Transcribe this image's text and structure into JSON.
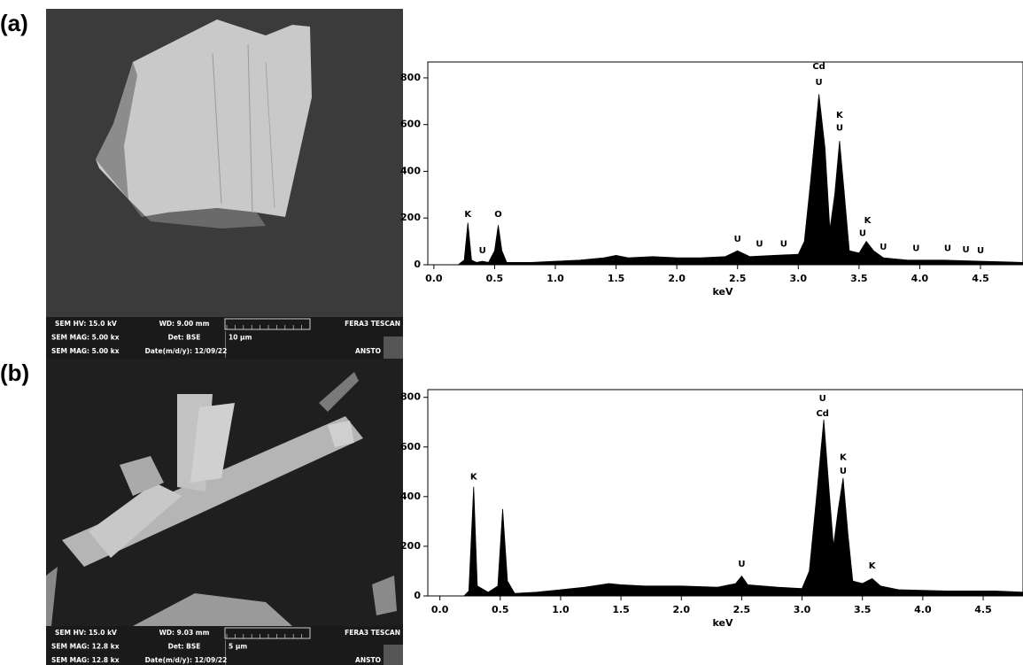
{
  "panel_labels": [
    "(a)",
    "(b)"
  ],
  "sem_info": [
    [
      "SEM HV: 15.0 kV",
      "WD: 9.00 mm",
      "FERA3 TESCAN",
      "SEM MAG: 5.00 kx",
      "Det: BSE",
      "10 μm",
      "SEM MAG: 5.00 kx",
      "Date(m/d/y): 12/09/22",
      "ANSTO"
    ],
    [
      "SEM HV: 15.0 kV",
      "WD: 9.03 mm",
      "FERA3 TESCAN",
      "SEM MAG: 12.8 kx",
      "Det: BSE",
      "5 μm",
      "SEM MAG: 12.8 kx",
      "Date(m/d/y): 12/09/22",
      "ANSTO"
    ]
  ],
  "chart_data": [
    {
      "type": "area",
      "xlabel": "keV",
      "color": "#000000",
      "xlim": [
        -0.05,
        4.85
      ],
      "ylim": [
        0,
        868
      ],
      "xticks": [
        {
          "value": 0,
          "label": "0.0"
        },
        0.5,
        {
          "value": 1,
          "label": "1.0"
        },
        1.5,
        {
          "value": 2,
          "label": "2.0"
        },
        2.5,
        {
          "value": 3,
          "label": "3.0"
        },
        3.5,
        {
          "value": 4,
          "label": "4.0"
        },
        4.5
      ],
      "yticks": [
        0,
        200,
        400,
        600,
        800
      ],
      "x": [
        0.2,
        0.25,
        0.28,
        0.31,
        0.35,
        0.4,
        0.45,
        0.5,
        0.53,
        0.56,
        0.6,
        0.8,
        1.0,
        1.2,
        1.4,
        1.5,
        1.6,
        1.8,
        2.0,
        2.2,
        2.4,
        2.5,
        2.6,
        2.8,
        3.0,
        3.05,
        3.1,
        3.17,
        3.22,
        3.26,
        3.3,
        3.34,
        3.38,
        3.42,
        3.5,
        3.56,
        3.62,
        3.7,
        3.9,
        4.2,
        4.5,
        4.85
      ],
      "values": [
        0,
        20,
        180,
        20,
        10,
        15,
        10,
        60,
        170,
        60,
        10,
        10,
        15,
        20,
        30,
        40,
        30,
        35,
        30,
        30,
        35,
        60,
        35,
        40,
        45,
        100,
        350,
        730,
        500,
        150,
        300,
        530,
        300,
        60,
        50,
        100,
        60,
        30,
        20,
        20,
        15,
        10
      ],
      "annotations": [
        {
          "text": "K",
          "x": 0.28,
          "y": 217
        },
        {
          "text": "U",
          "x": 0.4,
          "y": 60
        },
        {
          "text": "O",
          "x": 0.53,
          "y": 217
        },
        {
          "text": "U",
          "x": 2.5,
          "y": 110
        },
        {
          "text": "U",
          "x": 2.68,
          "y": 90
        },
        {
          "text": "U",
          "x": 2.88,
          "y": 90
        },
        {
          "text": "Cd",
          "x": 3.17,
          "y": 849
        },
        {
          "text": "U",
          "x": 3.17,
          "y": 780
        },
        {
          "text": "K",
          "x": 3.34,
          "y": 640
        },
        {
          "text": "U",
          "x": 3.34,
          "y": 585
        },
        {
          "text": "K",
          "x": 3.57,
          "y": 190
        },
        {
          "text": "U",
          "x": 3.53,
          "y": 135
        },
        {
          "text": "U",
          "x": 3.7,
          "y": 75
        },
        {
          "text": "U",
          "x": 3.97,
          "y": 70
        },
        {
          "text": "U",
          "x": 4.23,
          "y": 70
        },
        {
          "text": "U",
          "x": 4.38,
          "y": 65
        },
        {
          "text": "U",
          "x": 4.5,
          "y": 60
        }
      ]
    },
    {
      "type": "area",
      "xlabel": "keV",
      "color": "#000000",
      "xlim": [
        -0.1,
        4.83
      ],
      "ylim": [
        0,
        831
      ],
      "xticks": [
        {
          "value": 0,
          "label": "0.0"
        },
        0.5,
        {
          "value": 1,
          "label": "1.0"
        },
        1.5,
        {
          "value": 2,
          "label": "2.0"
        },
        2.5,
        {
          "value": 3,
          "label": "3.0"
        },
        3.5,
        {
          "value": 4,
          "label": "4.0"
        },
        4.5
      ],
      "yticks": [
        0,
        200,
        400,
        600,
        800
      ],
      "x": [
        0.2,
        0.24,
        0.28,
        0.31,
        0.4,
        0.48,
        0.52,
        0.56,
        0.62,
        0.8,
        1.0,
        1.2,
        1.4,
        1.5,
        1.7,
        2.0,
        2.3,
        2.45,
        2.5,
        2.55,
        2.8,
        3.0,
        3.06,
        3.12,
        3.18,
        3.22,
        3.26,
        3.3,
        3.34,
        3.38,
        3.42,
        3.5,
        3.58,
        3.65,
        3.8,
        4.2,
        4.6,
        4.83
      ],
      "values": [
        0,
        20,
        440,
        40,
        15,
        40,
        350,
        60,
        10,
        15,
        25,
        35,
        50,
        45,
        40,
        40,
        35,
        50,
        80,
        45,
        35,
        30,
        100,
        400,
        710,
        450,
        200,
        350,
        475,
        250,
        60,
        50,
        70,
        40,
        25,
        20,
        20,
        15
      ],
      "annotations": [
        {
          "text": "K",
          "x": 0.28,
          "y": 480
        },
        {
          "text": "U",
          "x": 2.5,
          "y": 129
        },
        {
          "text": "U",
          "x": 3.17,
          "y": 796
        },
        {
          "text": "Cd",
          "x": 3.17,
          "y": 735
        },
        {
          "text": "K",
          "x": 3.34,
          "y": 559
        },
        {
          "text": "U",
          "x": 3.34,
          "y": 502
        },
        {
          "text": "K",
          "x": 3.58,
          "y": 122
        }
      ]
    }
  ]
}
